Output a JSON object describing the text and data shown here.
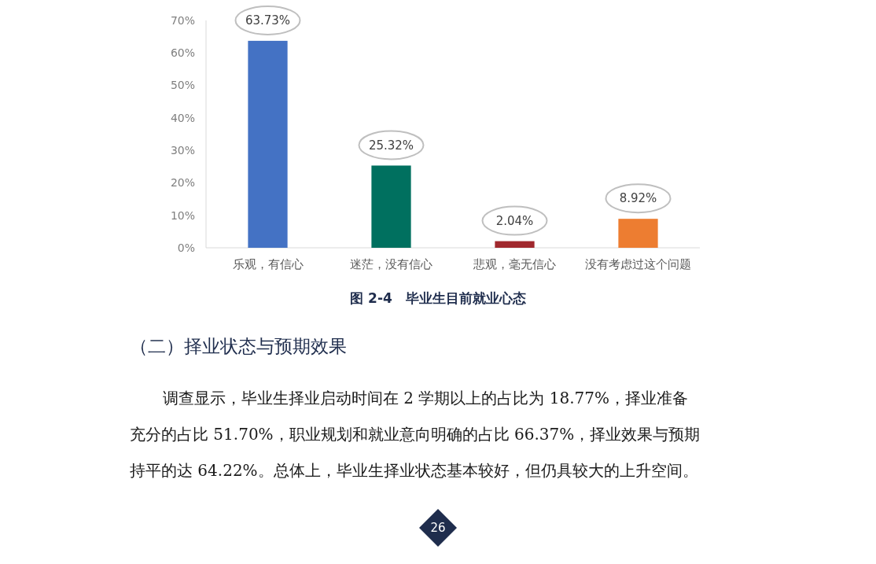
{
  "chart_data": {
    "type": "bar",
    "title": "图 2-4　毕业生目前就业心态",
    "categories": [
      "乐观，有信心",
      "迷茫，没有信心",
      "悲观，毫无信心",
      "没有考虑过这个问题"
    ],
    "values": [
      63.73,
      25.32,
      2.04,
      8.92
    ],
    "colors": [
      "#4472c4",
      "#00705f",
      "#a0282d",
      "#ed7d31"
    ],
    "value_labels": [
      "63.73%",
      "25.32%",
      "2.04%",
      "8.92%"
    ],
    "ylim": [
      0,
      70
    ],
    "yticks": [
      {
        "value": 0,
        "label": "0%"
      },
      {
        "value": 10,
        "label": "10%"
      },
      {
        "value": 20,
        "label": "20%"
      },
      {
        "value": 30,
        "label": "30%"
      },
      {
        "value": 40,
        "label": "40%"
      },
      {
        "value": 50,
        "label": "50%"
      },
      {
        "value": 60,
        "label": "60%"
      },
      {
        "value": 70,
        "label": "70%"
      }
    ],
    "grid": false,
    "annotations": [
      "（二）择业状态与预期效果",
      "调查显示，毕业生择业启动时间在 2 学期以上的占比为 18.77%，择业准备",
      "充分的占比 51.70%，职业规划和就业意向明确的占比 66.37%，择业效果与预期",
      "持平的达 64.22%。总体上，毕业生择业状态基本较好，但仍具较大的上升空间。",
      "26"
    ]
  }
}
